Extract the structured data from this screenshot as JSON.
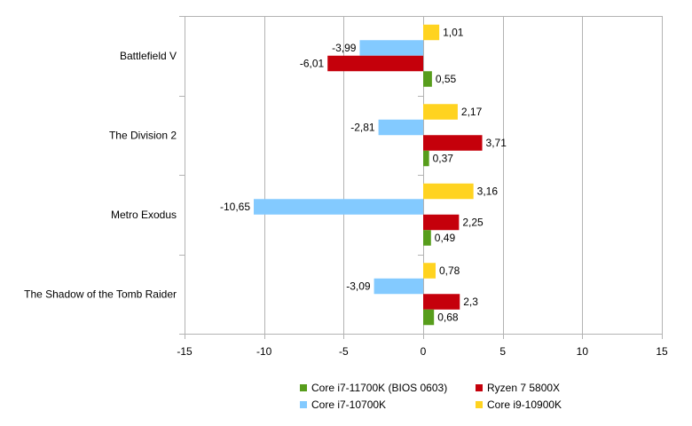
{
  "chart_data": {
    "type": "bar",
    "orientation": "horizontal",
    "title": "",
    "xlabel": "",
    "ylabel": "",
    "categories": [
      "Battlefield V",
      "The Division 2",
      "Metro Exodus",
      "The Shadow of the Tomb Raider"
    ],
    "xlim": [
      -15,
      15
    ],
    "xticks": [
      -15,
      -10,
      -5,
      0,
      5,
      10,
      15
    ],
    "xtick_labels": [
      "-15",
      "-10",
      "-5",
      "0",
      "5",
      "10",
      "15"
    ],
    "grid": true,
    "legend_position": "bottom",
    "series": [
      {
        "name": "Core i9-10900K",
        "color": "#FFD320",
        "values": [
          1.01,
          2.17,
          3.16,
          0.78
        ],
        "labels": [
          "1,01",
          "2,17",
          "3,16",
          "0,78"
        ]
      },
      {
        "name": "Core i7-10700K",
        "color": "#83CAFF",
        "values": [
          -3.99,
          -2.81,
          -10.65,
          -3.09
        ],
        "labels": [
          "-3,99",
          "-2,81",
          "-10,65",
          "-3,09"
        ]
      },
      {
        "name": "Ryzen 7 5800X",
        "color": "#C5000B",
        "values": [
          -6.01,
          3.71,
          2.25,
          2.3
        ],
        "labels": [
          "-6,01",
          "3,71",
          "2,25",
          "2,3"
        ]
      },
      {
        "name": "Core i7-11700K (BIOS 0603)",
        "color": "#579D1C",
        "values": [
          0.55,
          0.37,
          0.49,
          0.68
        ],
        "labels": [
          "0,55",
          "0,37",
          "0,49",
          "0,68"
        ]
      }
    ],
    "legend_order": [
      "Core i7-11700K (BIOS 0603)",
      "Ryzen 7 5800X",
      "Core i7-10700K",
      "Core i9-10900K"
    ]
  }
}
